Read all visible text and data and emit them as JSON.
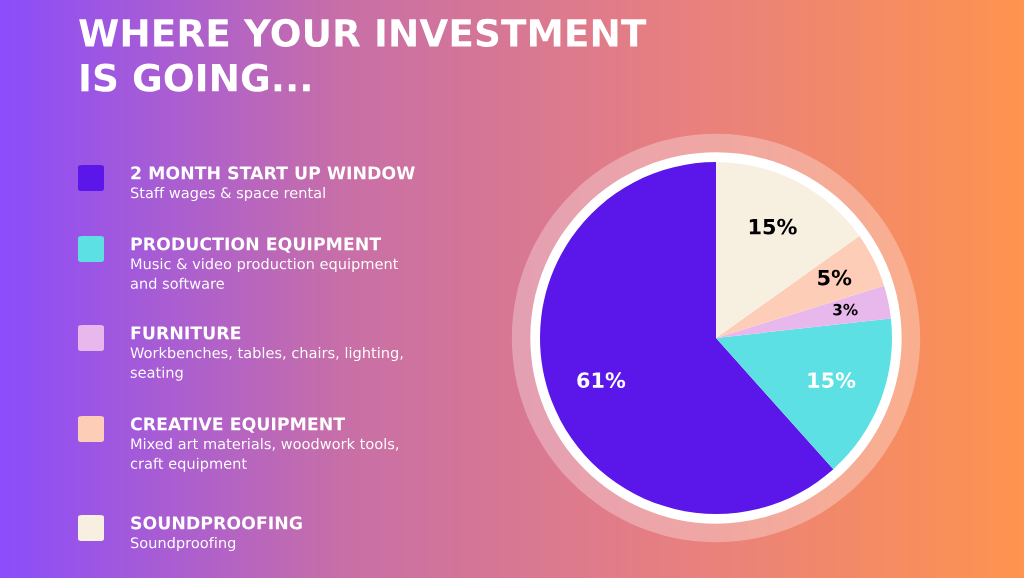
{
  "chart_data": {
    "type": "pie",
    "title": "WHERE YOUR INVESTMENT\nIS GOING...",
    "categories": [
      "2 MONTH START UP WINDOW",
      "PRODUCTION EQUIPMENT",
      "FURNITURE",
      "CREATIVE EQUIPMENT",
      "SOUNDPROOFING"
    ],
    "values": [
      61,
      15,
      3,
      5,
      15
    ],
    "colors": [
      "#5b17ea",
      "#5ce0e3",
      "#e8b7ec",
      "#fecdb8",
      "#f7f0e0"
    ],
    "value_labels": [
      "61%",
      "15%",
      "3%",
      "5%",
      "15%"
    ],
    "annotations": [
      "Staff wages & space rental",
      "Music & video production equipment\nand software",
      "Workbenches, tables, chairs, lighting,\nseating",
      "Mixed art materials, woodwork tools,\ncraft equipment",
      "Soundproofing"
    ],
    "legend": "left"
  }
}
